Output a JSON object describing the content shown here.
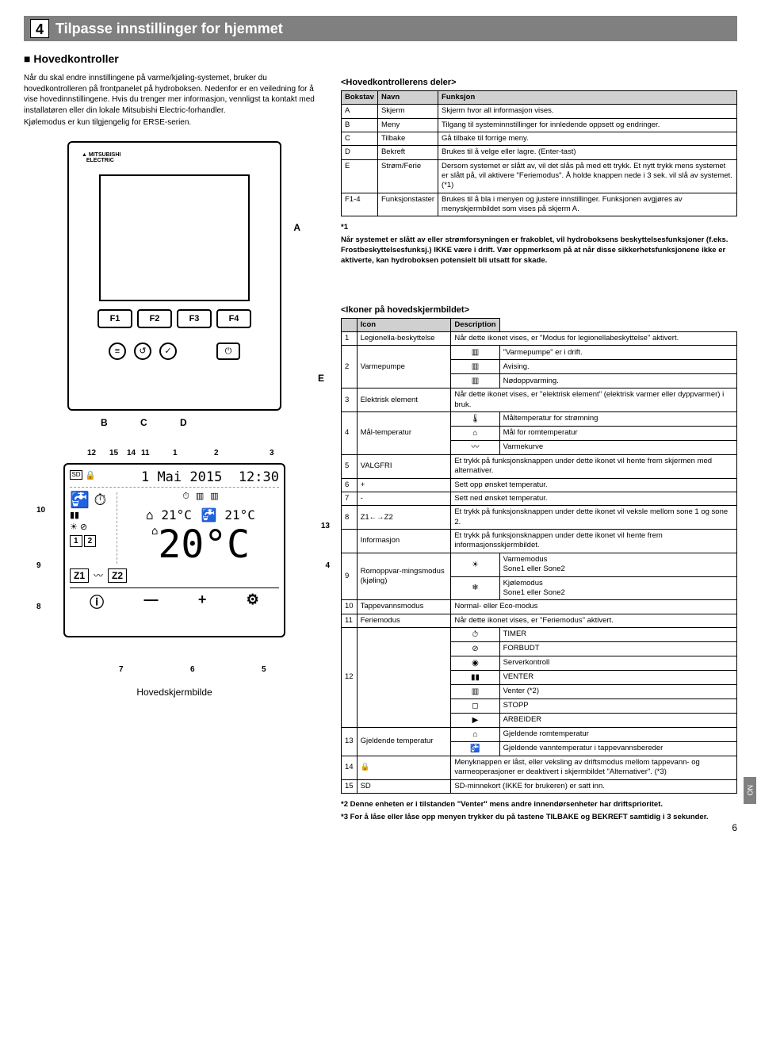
{
  "header": {
    "num": "4",
    "title": "Tilpasse innstillinger for hjemmet"
  },
  "section1_title": "Hovedkontroller",
  "intro": {
    "p1": "Når du skal endre innstillingene på varme/kjøling-systemet, bruker du hovedkontrolleren på frontpanelet på hydroboksen. Nedenfor er en veiledning for å vise hovedinnstillingene. Hvis du trenger mer informasjon, vennligst ta kontakt med installatøren eller din lokale Mitsubishi Electric-forhandler.",
    "p2": "Kjølemodus er kun tilgjengelig for ERSE-serien."
  },
  "controller": {
    "logo1": "MITSUBISHI",
    "logo2": "ELECTRIC",
    "fkeys": [
      "F1",
      "F2",
      "F3",
      "F4"
    ],
    "callouts": {
      "A": "A",
      "B": "B",
      "C": "C",
      "D": "D",
      "E": "E"
    }
  },
  "parts_title": "<Hovedkontrollerens deler>",
  "parts_headers": [
    "Bokstav",
    "Navn",
    "Funksjon"
  ],
  "parts_rows": [
    [
      "A",
      "Skjerm",
      "Skjerm hvor all informasjon vises."
    ],
    [
      "B",
      "Meny",
      "Tilgang til systeminnstillinger for innledende oppsett og endringer."
    ],
    [
      "C",
      "Tilbake",
      "Gå tilbake til forrige meny."
    ],
    [
      "D",
      "Bekreft",
      "Brukes til å velge eller lagre. (Enter-tast)"
    ],
    [
      "E",
      "Strøm/Ferie",
      "Dersom systemet er slått av, vil det slås på med ett trykk. Et nytt trykk mens systemet er slått på, vil aktivere \"Feriemodus\". Å holde knappen nede i 3 sek. vil slå av systemet. (*1)"
    ],
    [
      "F1-4",
      "Funksjonstaster",
      "Brukes til å bla i menyen og justere innstillinger. Funksjonen avgjøres av menyskjermbildet som vises på skjerm A."
    ]
  ],
  "star1_label": "*1",
  "star1_text": "Når systemet er slått av eller strømforsyningen er frakoblet, vil hydroboksens beskyttelsesfunksjoner (f.eks. Frostbeskyttelsesfunksj.) IKKE være i drift. Vær oppmerksom på at når disse sikkerhetsfunksjonene ikke er aktiverte, kan hydroboksen potensielt bli utsatt for skade.",
  "screen": {
    "date": "1 Mai 2015",
    "time": "12:30",
    "t_left": "21°C",
    "t_right": "21°C",
    "big": "20°C",
    "z1": "Z1",
    "z2": "Z2",
    "minus": "—",
    "plus": "+",
    "callouts": [
      "1",
      "2",
      "3",
      "4",
      "5",
      "6",
      "7",
      "8",
      "9",
      "10",
      "11",
      "12",
      "13",
      "14",
      "15"
    ],
    "caption": "Hovedskjermbilde"
  },
  "icons_title": "<Ikoner på hovedskjermbildet>",
  "icons_headers": [
    "",
    "Icon",
    "Description"
  ],
  "icons_rows": [
    {
      "n": "1",
      "icon": "Legionella-beskyttelse",
      "desc": "Når dette ikonet vises, er \"Modus for legionellabeskyttelse\" aktivert."
    },
    {
      "n": "2",
      "icon": "Varmepumpe",
      "sub": [
        {
          "g": "▥",
          "t": "\"Varmepumpe\" er i drift."
        },
        {
          "g": "▥",
          "t": "Avising."
        },
        {
          "g": "▥",
          "t": "Nødoppvarming."
        }
      ]
    },
    {
      "n": "3",
      "icon": "Elektrisk element",
      "desc": "Når dette ikonet vises, er \"elektrisk element\" (elektrisk varmer eller dyppvarmer) i bruk."
    },
    {
      "n": "4",
      "icon": "Mål-temperatur",
      "sub": [
        {
          "g": "🌡",
          "t": "Måltemperatur for strømning"
        },
        {
          "g": "⌂",
          "t": "Mål for romtemperatur"
        },
        {
          "g": "〰",
          "t": "Varmekurve"
        }
      ]
    },
    {
      "n": "5",
      "icon": "VALGFRI",
      "desc": "Et trykk på funksjonsknappen under dette ikonet vil hente frem skjermen med alternativer."
    },
    {
      "n": "6",
      "icon": "+",
      "desc": "Sett opp ønsket temperatur."
    },
    {
      "n": "7",
      "icon": "-",
      "desc": "Sett ned ønsket temperatur."
    },
    {
      "n": "8",
      "icon": "Z1←→Z2",
      "desc": "Et trykk på funksjonsknappen under dette ikonet vil veksle mellom sone 1 og sone 2."
    },
    {
      "n": "",
      "icon": "Informasjon",
      "desc": "Et trykk på funksjonsknappen under dette ikonet vil hente frem informasjonsskjermbildet."
    },
    {
      "n": "9",
      "icon": "Romoppvar-mingsmodus (kjøling)",
      "sub": [
        {
          "g": "☀",
          "t": "Varmemodus\nSone1 eller Sone2"
        },
        {
          "g": "❄",
          "t": "Kjølemodus\nSone1 eller Sone2"
        }
      ]
    },
    {
      "n": "10",
      "icon": "Tappevannsmodus",
      "desc": "Normal- eller Eco-modus"
    },
    {
      "n": "11",
      "icon": "Feriemodus",
      "desc": "Når dette ikonet vises, er \"Feriemodus\" aktivert."
    },
    {
      "n": "12",
      "icon": "",
      "sub": [
        {
          "g": "⏱",
          "t": "TIMER"
        },
        {
          "g": "⊘",
          "t": "FORBUDT"
        },
        {
          "g": "◉",
          "t": "Serverkontroll"
        },
        {
          "g": "▮▮",
          "t": "VENTER"
        },
        {
          "g": "▥",
          "t": "Venter (*2)"
        },
        {
          "g": "◻",
          "t": "STOPP"
        },
        {
          "g": "▶",
          "t": "ARBEIDER"
        }
      ]
    },
    {
      "n": "13",
      "icon": "Gjeldende temperatur",
      "sub": [
        {
          "g": "⌂",
          "t": "Gjeldende romtemperatur"
        },
        {
          "g": "🚰",
          "t": "Gjeldende vanntemperatur i tappevannsbereder"
        }
      ]
    },
    {
      "n": "14",
      "icon": "🔒",
      "desc": "Menyknappen er låst, eller veksling av driftsmodus mellom tappevann- og varmeoperasjoner er deaktivert i skjermbildet \"Alternativer\". (*3)"
    },
    {
      "n": "15",
      "icon": "SD",
      "desc": "SD-minnekort (IKKE for brukeren) er satt inn."
    }
  ],
  "foot_notes": [
    "*2 Denne enheten er i tilstanden \"Venter\" mens andre innendørsenheter har driftsprioritet.",
    "*3 For å låse eller låse opp menyen trykker du på tastene TILBAKE og BEKREFT samtidig i 3 sekunder."
  ],
  "page_tab": "NO",
  "page_num": "6"
}
